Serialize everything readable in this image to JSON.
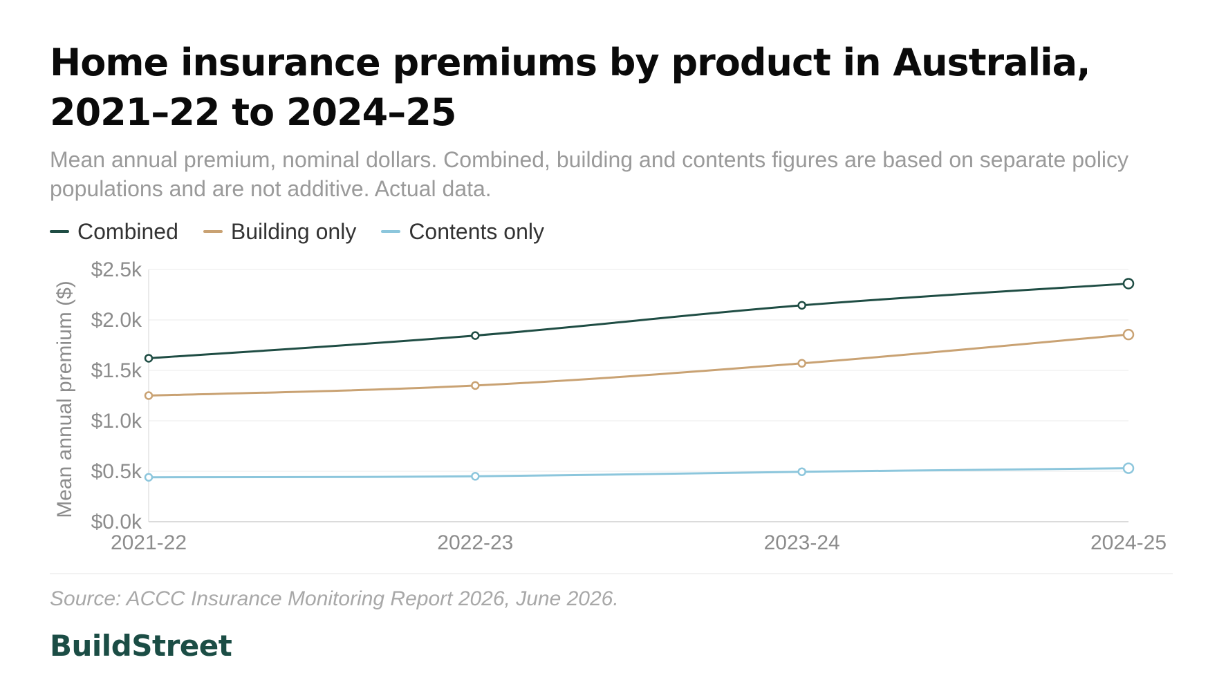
{
  "title": "Home insurance premiums by product in Australia, 2021–22 to 2024–25",
  "subtitle": "Mean annual premium, nominal dollars. Combined, building and contents figures are based on separate policy populations and are not additive. Actual data.",
  "legend": [
    {
      "label": "Combined",
      "color": "#1f4d44"
    },
    {
      "label": "Building only",
      "color": "#c9a273"
    },
    {
      "label": "Contents only",
      "color": "#8cc6dc"
    }
  ],
  "source": "Source: ACCC Insurance Monitoring Report 2026, June 2026.",
  "brand": "BuildStreet",
  "colors": {
    "accent": "#1b4d45",
    "grid": "#ebebeb",
    "axis_text": "#8c8c8c"
  },
  "chart_data": {
    "type": "line",
    "title": "Home insurance premiums by product in Australia, 2021–22 to 2024–25",
    "xlabel": "",
    "ylabel": "Mean annual premium ($)",
    "categories": [
      "2021-22",
      "2022-23",
      "2023-24",
      "2024-25"
    ],
    "ylim": [
      0,
      2500
    ],
    "yticks": [
      0,
      500,
      1000,
      1500,
      2000,
      2500
    ],
    "ytick_labels": [
      "$0.0k",
      "$0.5k",
      "$1.0k",
      "$1.5k",
      "$2.0k",
      "$2.5k"
    ],
    "grid": true,
    "legend_position": "top-left",
    "series": [
      {
        "name": "Combined",
        "color": "#1f4d44",
        "values": [
          1620,
          1845,
          2145,
          2360
        ]
      },
      {
        "name": "Building only",
        "color": "#c9a273",
        "values": [
          1250,
          1350,
          1570,
          1855
        ]
      },
      {
        "name": "Contents only",
        "color": "#8cc6dc",
        "values": [
          440,
          450,
          495,
          530
        ]
      }
    ]
  }
}
